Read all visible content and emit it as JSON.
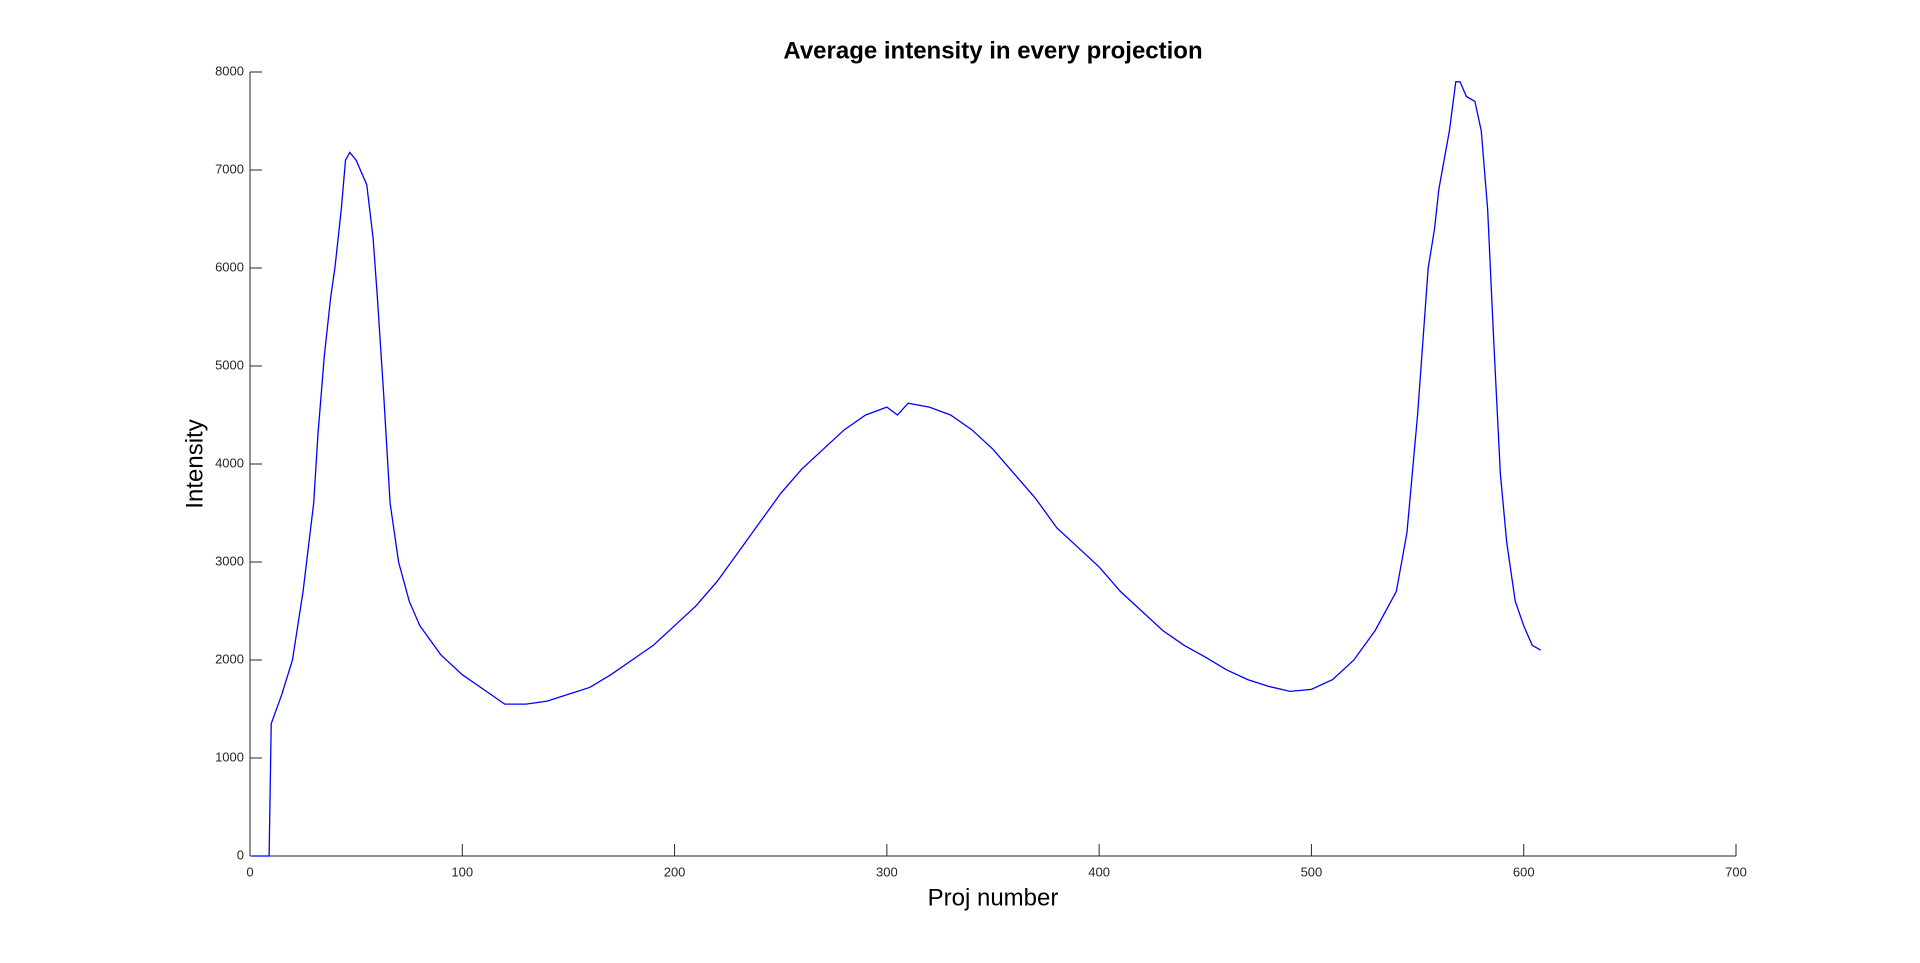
{
  "chart_data": {
    "type": "line",
    "title": "Average intensity in every projection",
    "xlabel": "Proj number",
    "ylabel": "Intensity",
    "xlim": [
      0,
      700
    ],
    "xticks": [
      0,
      100,
      200,
      300,
      400,
      500,
      600,
      700
    ],
    "ylim": [
      0,
      8000
    ],
    "yticks": [
      0,
      1000,
      2000,
      3000,
      4000,
      5000,
      6000,
      7000,
      8000
    ],
    "grid": false,
    "series": [
      {
        "name": "Average intensity",
        "color": "#0000ff",
        "x": [
          1,
          9,
          10,
          15,
          20,
          25,
          30,
          32,
          35,
          38,
          40,
          43,
          45,
          47,
          50,
          55,
          58,
          60,
          63,
          66,
          70,
          75,
          80,
          90,
          100,
          110,
          120,
          130,
          140,
          150,
          160,
          170,
          180,
          190,
          200,
          210,
          220,
          230,
          240,
          250,
          260,
          270,
          280,
          290,
          300,
          305,
          310,
          320,
          330,
          340,
          350,
          360,
          370,
          380,
          390,
          400,
          410,
          420,
          430,
          440,
          450,
          460,
          470,
          480,
          490,
          500,
          510,
          520,
          530,
          540,
          545,
          550,
          555,
          558,
          560,
          565,
          568,
          570,
          573,
          577,
          580,
          583,
          586,
          589,
          592,
          596,
          600,
          604,
          608
        ],
        "values": [
          0,
          0,
          1350,
          1650,
          2000,
          2700,
          3600,
          4300,
          5100,
          5700,
          6000,
          6600,
          7100,
          7180,
          7100,
          6850,
          6300,
          5700,
          4700,
          3600,
          3000,
          2600,
          2350,
          2050,
          1850,
          1700,
          1550,
          1550,
          1580,
          1650,
          1720,
          1850,
          2000,
          2150,
          2350,
          2550,
          2800,
          3100,
          3400,
          3700,
          3950,
          4150,
          4350,
          4500,
          4580,
          4500,
          4620,
          4580,
          4500,
          4350,
          4150,
          3900,
          3650,
          3350,
          3150,
          2950,
          2700,
          2500,
          2300,
          2150,
          2030,
          1900,
          1800,
          1730,
          1680,
          1700,
          1800,
          2000,
          2300,
          2700,
          3300,
          4500,
          6000,
          6400,
          6800,
          7400,
          7900,
          7900,
          7750,
          7700,
          7400,
          6600,
          5200,
          3900,
          3200,
          2600,
          2350,
          2150,
          2100
        ]
      }
    ]
  }
}
